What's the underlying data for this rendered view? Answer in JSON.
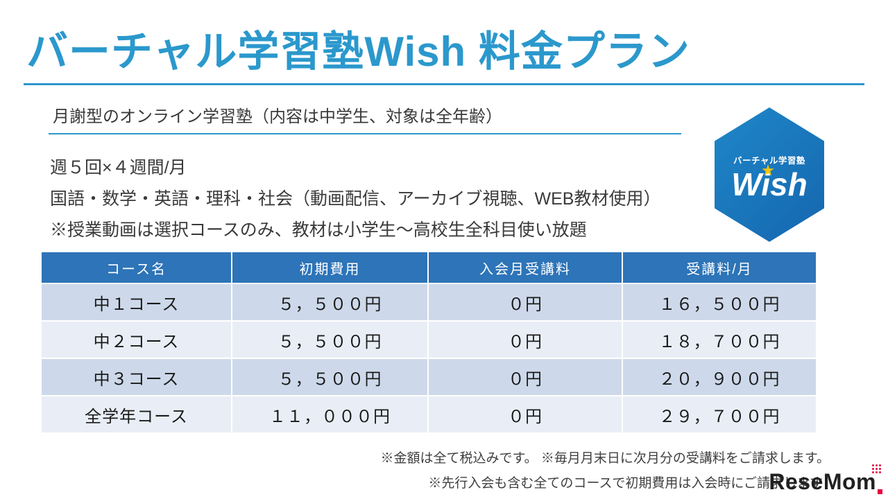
{
  "slide": {
    "title": "バーチャル学習塾Wish 料金プラン",
    "subtitle": "月謝型のオンライン学習塾（内容は中学生、対象は全年齢）",
    "body_lines": {
      "line1": "週５回×４週間/月",
      "line2": "国語・数学・英語・理科・社会（動画配信、アーカイブ視聴、WEB教材使用）",
      "line3": "※授業動画は選択コースのみ、教材は小学生～高校生全科目使い放題"
    }
  },
  "logo": {
    "tagline": "バーチャル学習塾",
    "brand": "Wish"
  },
  "table": {
    "headers": [
      "コース名",
      "初期費用",
      "入会月受講料",
      "受講料/月"
    ],
    "rows": [
      [
        "中１コース",
        "５，５００円",
        "０円",
        "１６，５００円"
      ],
      [
        "中２コース",
        "５，５００円",
        "０円",
        "１８，７００円"
      ],
      [
        "中３コース",
        "５，５００円",
        "０円",
        "２０，９００円"
      ],
      [
        "全学年コース",
        "１１，０００円",
        "０円",
        "２９，７００円"
      ]
    ]
  },
  "notes": {
    "note1": "※金額は全て税込みです。 ※毎月月末日に次月分の受講料をご請求します。",
    "note2": "※先行入会も含む全てのコースで初期費用は入会時にご請求します"
  },
  "watermark": {
    "text": "ReseMom"
  },
  "colors": {
    "title_blue": "#2b98cc",
    "table_header_blue": "#2d74b8",
    "row_dark": "#cdd9ea",
    "row_light": "#e9eef6",
    "hexagon_blue": "#1878be",
    "star_yellow": "#f2c40f",
    "watermark_red": "#e50040"
  }
}
